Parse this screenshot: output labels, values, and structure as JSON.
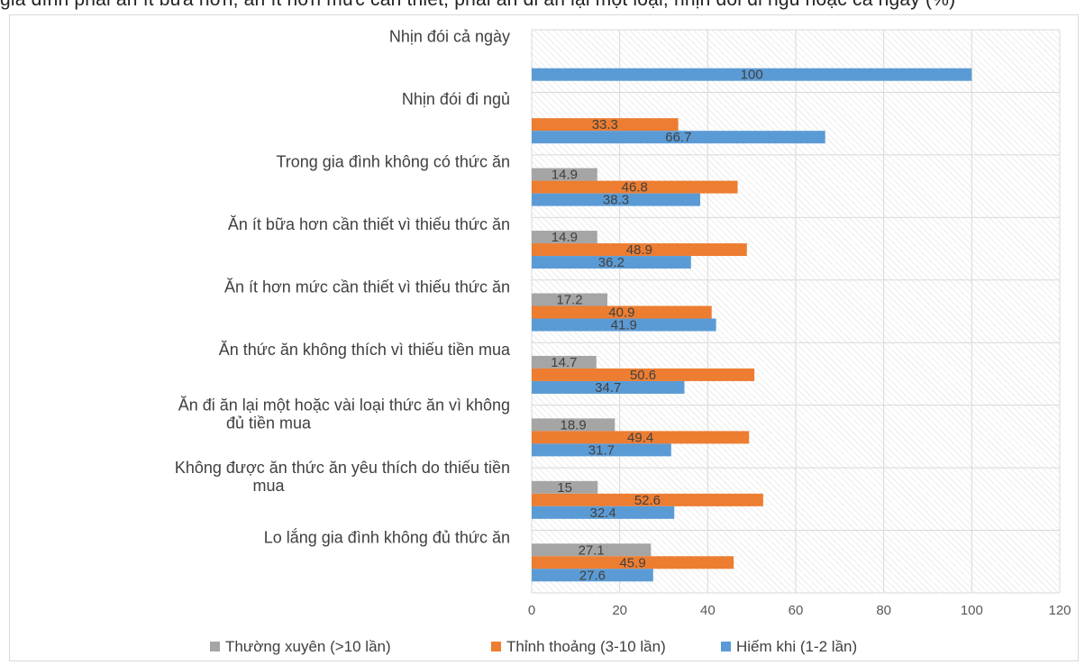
{
  "header_fragment": "gia đình phải ăn ít bữa hơn, ăn ít hơn mức cần thiết, phải ăn đi ăn lại một loại, nhịn đói đi ngủ hoặc cả ngày (%)",
  "chart_data": {
    "type": "bar",
    "orientation": "horizontal",
    "categories": [
      "Nhịn đói cả ngày",
      "Nhịn đói đi ngủ",
      "Trong gia đình không có thức ăn",
      "Ăn ít bữa hơn cần thiết vì thiếu thức ăn",
      "Ăn ít hơn mức cần thiết vì thiếu thức ăn",
      "Ăn thức ăn không thích vì thiếu tiền mua",
      "Ăn đi ăn lại một hoặc vài loại thức ăn vì không đủ tiền mua",
      "Không được ăn thức ăn yêu thích do thiếu tiền mua",
      "Lo lắng gia đình không đủ thức ăn"
    ],
    "series": [
      {
        "name": "Thường xuyên (>10 lần)",
        "color": "#a5a5a5",
        "values": [
          null,
          null,
          14.9,
          14.9,
          17.2,
          14.7,
          18.9,
          15,
          27.1
        ]
      },
      {
        "name": "Thỉnh thoảng (3-10 lần)",
        "color": "#ed7d31",
        "values": [
          null,
          33.3,
          46.8,
          48.9,
          40.9,
          50.6,
          49.4,
          52.6,
          45.9
        ]
      },
      {
        "name": "Hiếm khi (1-2 lần)",
        "color": "#5b9bd5",
        "values": [
          100,
          66.7,
          38.3,
          36.2,
          41.9,
          34.7,
          31.7,
          32.4,
          27.6
        ]
      }
    ],
    "xlim": [
      0,
      120
    ],
    "xticks": [
      0,
      20,
      40,
      60,
      80,
      100,
      120
    ],
    "grid": true,
    "legend": "bottom"
  }
}
